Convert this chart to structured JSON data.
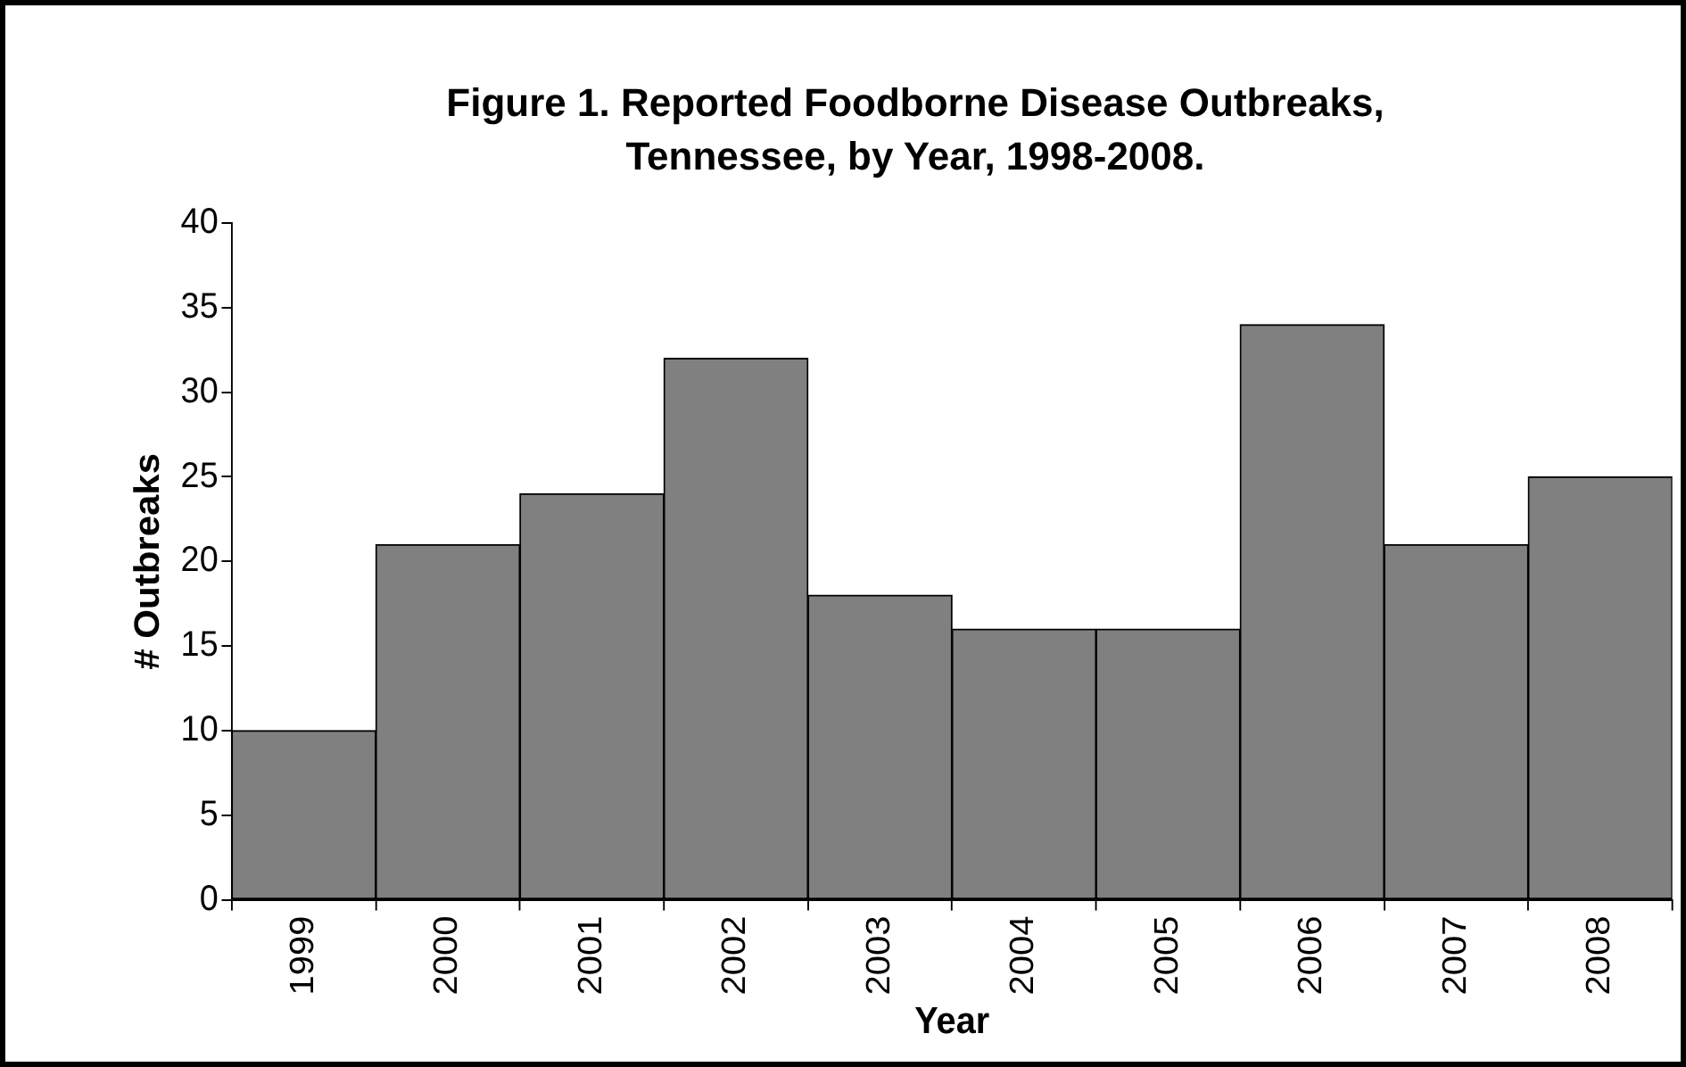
{
  "chart_data": {
    "type": "bar",
    "title": "Figure 1. Reported Foodborne Disease Outbreaks, Tennessee, by Year, 1998-2008.",
    "xlabel": "Year",
    "ylabel": "# Outbreaks",
    "categories": [
      "1999",
      "2000",
      "2001",
      "2002",
      "2003",
      "2004",
      "2005",
      "2006",
      "2007",
      "2008"
    ],
    "values": [
      10,
      21,
      24,
      32,
      18,
      16,
      16,
      34,
      21,
      25
    ],
    "color": "#808080",
    "ylim": [
      0,
      40
    ],
    "yticks": [
      0,
      5,
      10,
      15,
      20,
      25,
      30,
      35,
      40
    ],
    "grid": false,
    "legend": false
  }
}
